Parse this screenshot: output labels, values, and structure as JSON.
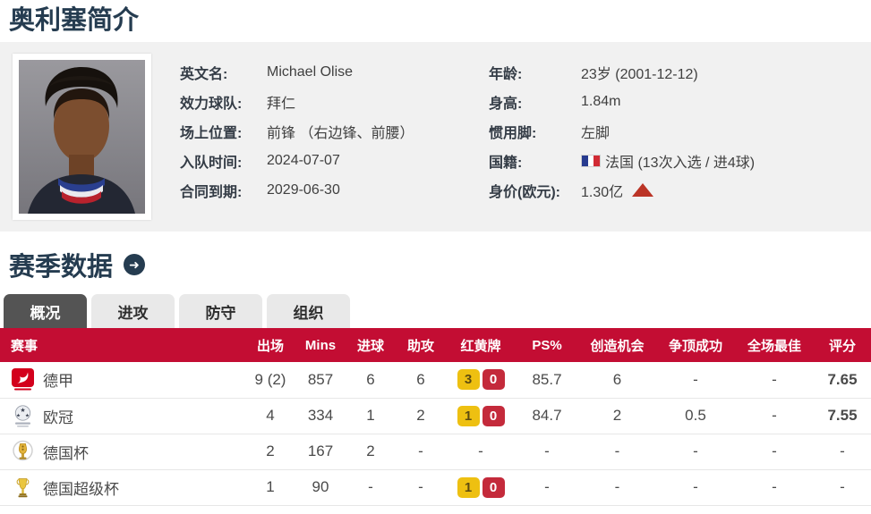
{
  "page": {
    "title": "奥利塞简介"
  },
  "profile": {
    "left_fields": [
      {
        "label": "英文名:",
        "value": "Michael Olise"
      },
      {
        "label": "效力球队:",
        "value": "拜仁"
      },
      {
        "label": "场上位置:",
        "value": "前锋 （右边锋、前腰）"
      },
      {
        "label": "入队时间:",
        "value": "2024-07-07"
      },
      {
        "label": "合同到期:",
        "value": "2029-06-30"
      }
    ],
    "right_fields": [
      {
        "label": "年龄:",
        "value": "23岁  (2001-12-12)"
      },
      {
        "label": "身高:",
        "value": "1.84m"
      },
      {
        "label": "惯用脚:",
        "value": "左脚"
      },
      {
        "label": "国籍:",
        "value": "法国 (13次入选 / 进4球)",
        "flag": "france-flag-icon"
      },
      {
        "label": "身价(欧元):",
        "value": "1.30亿",
        "trend": "up"
      }
    ]
  },
  "season": {
    "title": "赛季数据",
    "arrow_icon": "➜",
    "tabs": [
      {
        "key": "overview",
        "label": "概况",
        "active": true
      },
      {
        "key": "attack",
        "label": "进攻",
        "active": false
      },
      {
        "key": "defense",
        "label": "防守",
        "active": false
      },
      {
        "key": "organization",
        "label": "组织",
        "active": false
      }
    ],
    "table": {
      "headers": [
        "赛事",
        "出场",
        "Mins",
        "进球",
        "助攻",
        "红黄牌",
        "PS%",
        "创造机会",
        "争顶成功",
        "全场最佳",
        "评分"
      ],
      "rows": [
        {
          "key": "bundesliga",
          "icon": "bundesliga-logo",
          "competition": "德甲",
          "apps": "9 (2)",
          "mins": "857",
          "goals": "6",
          "assists": "6",
          "yellow": "3",
          "red": "0",
          "ps": "85.7",
          "chances": "6",
          "aerials": "-",
          "motm": "-",
          "rating": "7.65"
        },
        {
          "key": "ucl",
          "icon": "champions-league-logo",
          "competition": "欧冠",
          "apps": "4",
          "mins": "334",
          "goals": "1",
          "assists": "2",
          "yellow": "1",
          "red": "0",
          "ps": "84.7",
          "chances": "2",
          "aerials": "0.5",
          "motm": "-",
          "rating": "7.55"
        },
        {
          "key": "dfb-pokal",
          "icon": "dfb-pokal-logo",
          "competition": "德国杯",
          "apps": "2",
          "mins": "167",
          "goals": "2",
          "assists": "-",
          "yellow": null,
          "red": null,
          "ps": "-",
          "chances": "-",
          "aerials": "-",
          "motm": "-",
          "rating": "-"
        },
        {
          "key": "supercup",
          "icon": "german-supercup-logo",
          "competition": "德国超级杯",
          "apps": "1",
          "mins": "90",
          "goals": "-",
          "assists": "-",
          "yellow": "1",
          "red": "0",
          "ps": "-",
          "chances": "-",
          "aerials": "-",
          "motm": "-",
          "rating": "-"
        }
      ]
    }
  },
  "colors": {
    "header_red": "#c30d33",
    "title_navy": "#253c50",
    "yellow_card": "#eec011",
    "red_card": "#c42a3b",
    "rating_orange": "#e55c28",
    "panel_gray": "#f1f1f1",
    "active_tab": "#545454"
  }
}
